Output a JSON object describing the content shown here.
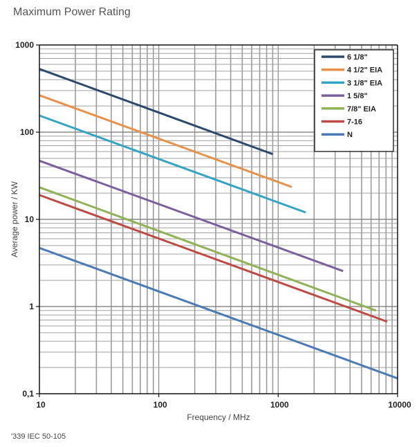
{
  "chart_data": {
    "type": "line",
    "title": "Maximum Power Rating",
    "xlabel": "Frequency / MHz",
    "ylabel": "Average power / KW",
    "xscale": "log",
    "yscale": "log",
    "xlim": [
      10,
      10000
    ],
    "ylim": [
      0.1,
      1000
    ],
    "xticks": [
      10,
      100,
      1000,
      10000
    ],
    "xtick_labels": [
      "10",
      "100",
      "1000",
      "10000"
    ],
    "yticks": [
      0.1,
      1,
      10,
      100,
      1000
    ],
    "ytick_labels": [
      "0,1",
      "1",
      "10",
      "100",
      "1000"
    ],
    "grid": true,
    "legend_position": "top-right",
    "series": [
      {
        "name": "6 1/8\"",
        "color": "#2d4a6e",
        "x": [
          10,
          900
        ],
        "y": [
          530,
          56
        ]
      },
      {
        "name": "4 1/2\" EIA",
        "color": "#e8914a",
        "x": [
          10,
          1300
        ],
        "y": [
          265,
          23.5
        ]
      },
      {
        "name": "3 1/8\" EIA",
        "color": "#35a3c3",
        "x": [
          10,
          1700
        ],
        "y": [
          155,
          12
        ]
      },
      {
        "name": "1 5/8\"",
        "color": "#7a5f9c",
        "x": [
          10,
          3500
        ],
        "y": [
          47,
          2.55
        ]
      },
      {
        "name": "7/8\" EIA",
        "color": "#90b356",
        "x": [
          10,
          6600
        ],
        "y": [
          23.3,
          0.9
        ]
      },
      {
        "name": "7-16",
        "color": "#be4a45",
        "x": [
          10,
          8200
        ],
        "y": [
          19,
          0.67
        ]
      },
      {
        "name": "N",
        "color": "#4a7bb5",
        "x": [
          10,
          10000
        ],
        "y": [
          4.7,
          0.15
        ]
      }
    ]
  },
  "footnote": "'339 IEC 50-105"
}
